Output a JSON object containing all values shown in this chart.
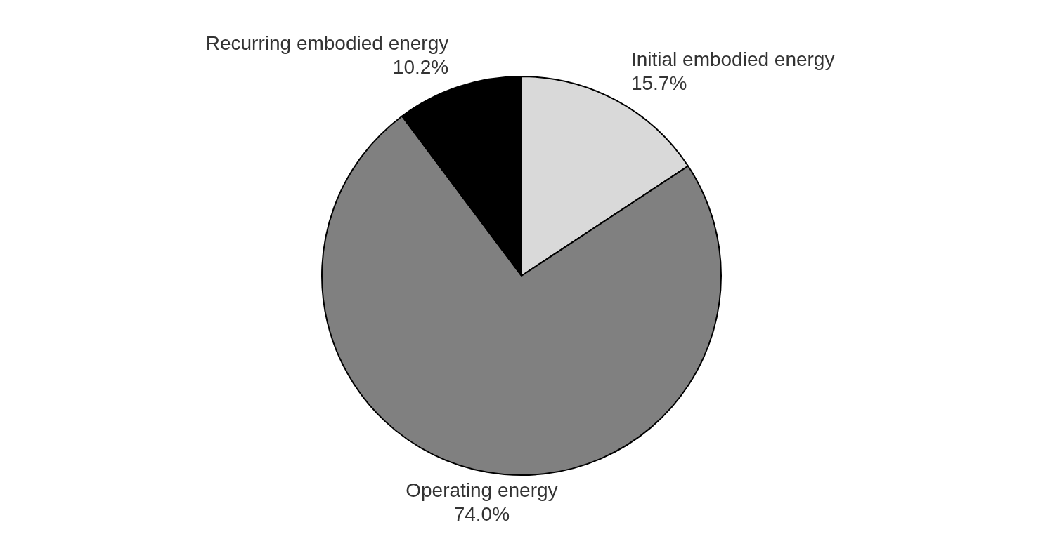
{
  "chart_data": {
    "type": "pie",
    "categories": [
      "Initial embodied energy",
      "Operating energy",
      "Recurring embodied energy"
    ],
    "values": [
      15.7,
      74.0,
      10.2
    ],
    "value_labels": [
      "15.7%",
      "74.0%",
      "10.2%"
    ],
    "colors": [
      "#d9d9d9",
      "#808080",
      "#000000"
    ],
    "legend": false
  }
}
